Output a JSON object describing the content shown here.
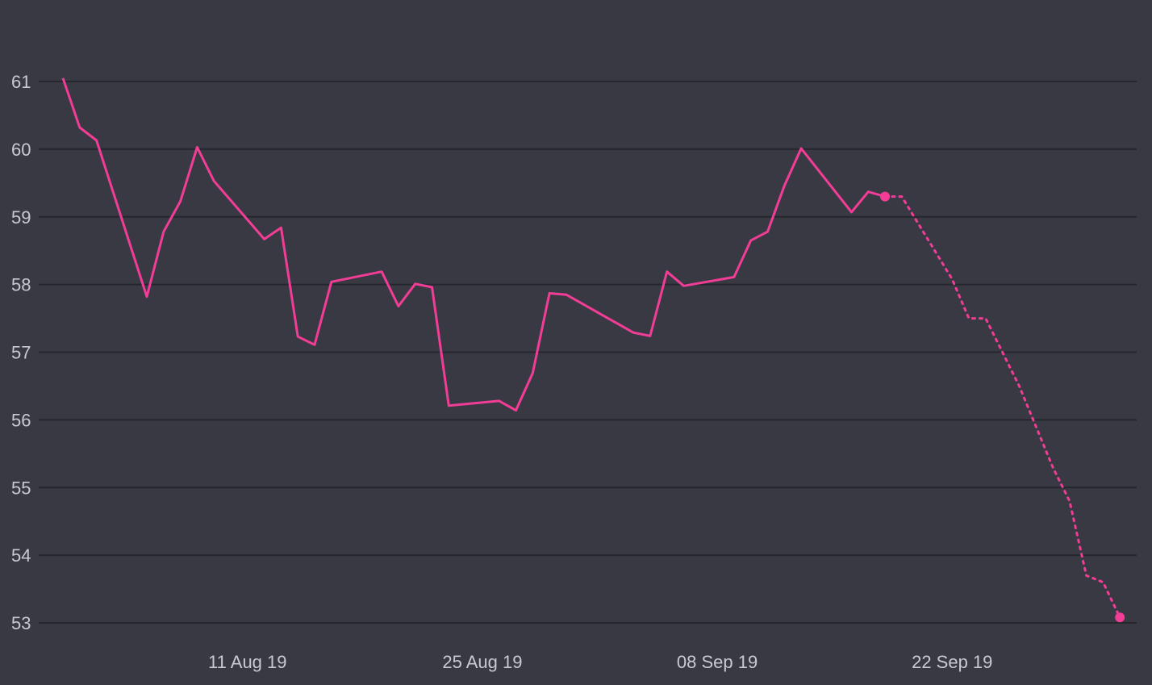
{
  "chart_data": {
    "type": "line",
    "title": "",
    "xlabel": "",
    "ylabel": "",
    "ylim": [
      53,
      61
    ],
    "yticks": [
      53,
      54,
      55,
      56,
      57,
      58,
      59,
      60,
      61
    ],
    "xlim": [
      "2019-07-31",
      "2019-10-03"
    ],
    "xticks": [
      {
        "date": "2019-08-11",
        "label": "11 Aug 19"
      },
      {
        "date": "2019-08-25",
        "label": "25 Aug 19"
      },
      {
        "date": "2019-09-08",
        "label": "08 Sep 19"
      },
      {
        "date": "2019-09-22",
        "label": "22 Sep 19"
      }
    ],
    "grid": "horizontal",
    "legend": "none",
    "colors": {
      "background": "#393944",
      "line": "#f23d96",
      "grid": "#26262d",
      "tick": "#c9c9d2"
    },
    "series": [
      {
        "style": "solid",
        "marker_on_last": true,
        "points": [
          [
            "2019-07-31",
            61.05
          ],
          [
            "2019-08-01",
            60.32
          ],
          [
            "2019-08-02",
            60.13
          ],
          [
            "2019-08-05",
            57.82
          ],
          [
            "2019-08-06",
            58.78
          ],
          [
            "2019-08-07",
            59.23
          ],
          [
            "2019-08-08",
            60.03
          ],
          [
            "2019-08-09",
            59.53
          ],
          [
            "2019-08-12",
            58.67
          ],
          [
            "2019-08-13",
            58.84
          ],
          [
            "2019-08-14",
            57.23
          ],
          [
            "2019-08-15",
            57.11
          ],
          [
            "2019-08-16",
            58.04
          ],
          [
            "2019-08-19",
            58.19
          ],
          [
            "2019-08-20",
            57.68
          ],
          [
            "2019-08-21",
            58.01
          ],
          [
            "2019-08-22",
            57.96
          ],
          [
            "2019-08-23",
            56.21
          ],
          [
            "2019-08-26",
            56.28
          ],
          [
            "2019-08-27",
            56.14
          ],
          [
            "2019-08-28",
            56.69
          ],
          [
            "2019-08-29",
            57.87
          ],
          [
            "2019-08-30",
            57.85
          ],
          [
            "2019-09-03",
            57.29
          ],
          [
            "2019-09-04",
            57.24
          ],
          [
            "2019-09-05",
            58.19
          ],
          [
            "2019-09-06",
            57.98
          ],
          [
            "2019-09-09",
            58.11
          ],
          [
            "2019-09-10",
            58.65
          ],
          [
            "2019-09-11",
            58.78
          ],
          [
            "2019-09-12",
            59.46
          ],
          [
            "2019-09-13",
            60.01
          ],
          [
            "2019-09-16",
            59.07
          ],
          [
            "2019-09-17",
            59.37
          ],
          [
            "2019-09-18",
            59.3
          ]
        ]
      },
      {
        "style": "dotted",
        "marker_on_last": true,
        "points": [
          [
            "2019-09-18",
            59.3
          ],
          [
            "2019-09-19",
            59.3
          ],
          [
            "2019-09-22",
            58.08
          ],
          [
            "2019-09-23",
            57.5
          ],
          [
            "2019-09-24",
            57.5
          ],
          [
            "2019-09-26",
            56.5
          ],
          [
            "2019-09-28",
            55.3
          ],
          [
            "2019-09-29",
            54.8
          ],
          [
            "2019-09-30",
            53.7
          ],
          [
            "2019-10-01",
            53.6
          ],
          [
            "2019-10-02",
            53.08
          ]
        ]
      }
    ]
  }
}
